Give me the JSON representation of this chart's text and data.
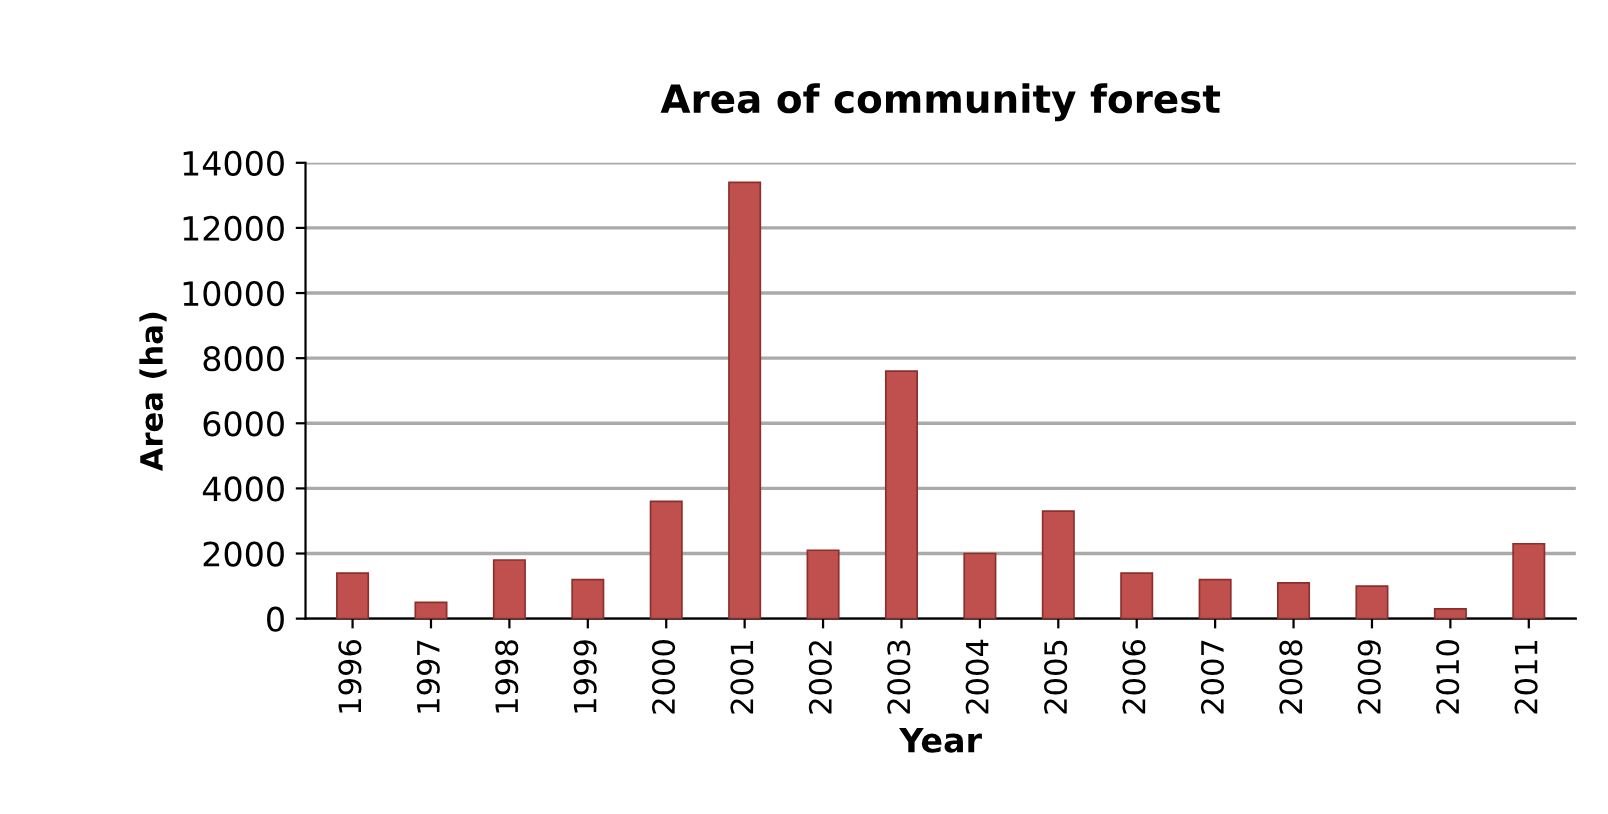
{
  "chart_data": {
    "type": "bar",
    "title": "Area of community forest",
    "xlabel": "Year",
    "ylabel": "Area (ha)",
    "categories": [
      "1996",
      "1997",
      "1998",
      "1999",
      "2000",
      "2001",
      "2002",
      "2003",
      "2004",
      "2005",
      "2006",
      "2007",
      "2008",
      "2009",
      "2010",
      "2011"
    ],
    "values": [
      1400,
      500,
      1800,
      1200,
      3600,
      13400,
      2100,
      7600,
      2000,
      3300,
      1400,
      1200,
      1100,
      1000,
      300,
      2300
    ],
    "color": "#c0504d",
    "ylim": [
      0,
      14000
    ],
    "yticks": [
      0,
      2000,
      4000,
      6000,
      8000,
      10000,
      12000,
      14000
    ],
    "grid": "y",
    "legend": false
  }
}
